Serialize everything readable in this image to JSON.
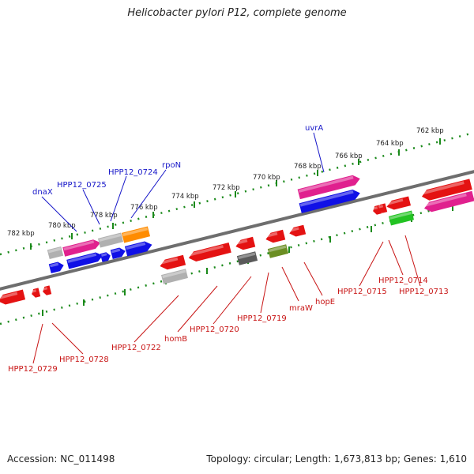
{
  "title": "Helicobacter pylori P12, complete genome",
  "footer": {
    "accession": "Accession: NC_011498",
    "summary": "Topology: circular; Length: 1,673,813 bp; Genes: 1,610"
  },
  "colors": {
    "backbone": "#6e6e6e",
    "tick": "#1b8a1b",
    "label_top": "#1515c8",
    "label_bottom": "#c81515",
    "red": "#e41212",
    "blue": "#1010e6",
    "magenta": "#e0208e",
    "gray": "#b0b0b0",
    "dark_gray": "#5a5a5a",
    "orange": "#ff8c00",
    "olive": "#6b8e23",
    "green": "#22c322"
  },
  "scale_labels": [
    "762 kbp",
    "764 kbp",
    "766 kbp",
    "768 kbp",
    "770 kbp",
    "772 kbp",
    "774 kbp",
    "776 kbp",
    "778 kbp",
    "780 kbp",
    "782 kbp"
  ],
  "top_labels": [
    "uvrA",
    "rpoN",
    "HPP12_0724",
    "HPP12_0725",
    "dnaX"
  ],
  "bottom_labels": [
    "HPP12_0729",
    "HPP12_0728",
    "HPP12_0722",
    "homB",
    "HPP12_0720",
    "HPP12_0719",
    "mraW",
    "hopE",
    "HPP12_0715",
    "HPP12_0714",
    "HPP12_0713"
  ]
}
